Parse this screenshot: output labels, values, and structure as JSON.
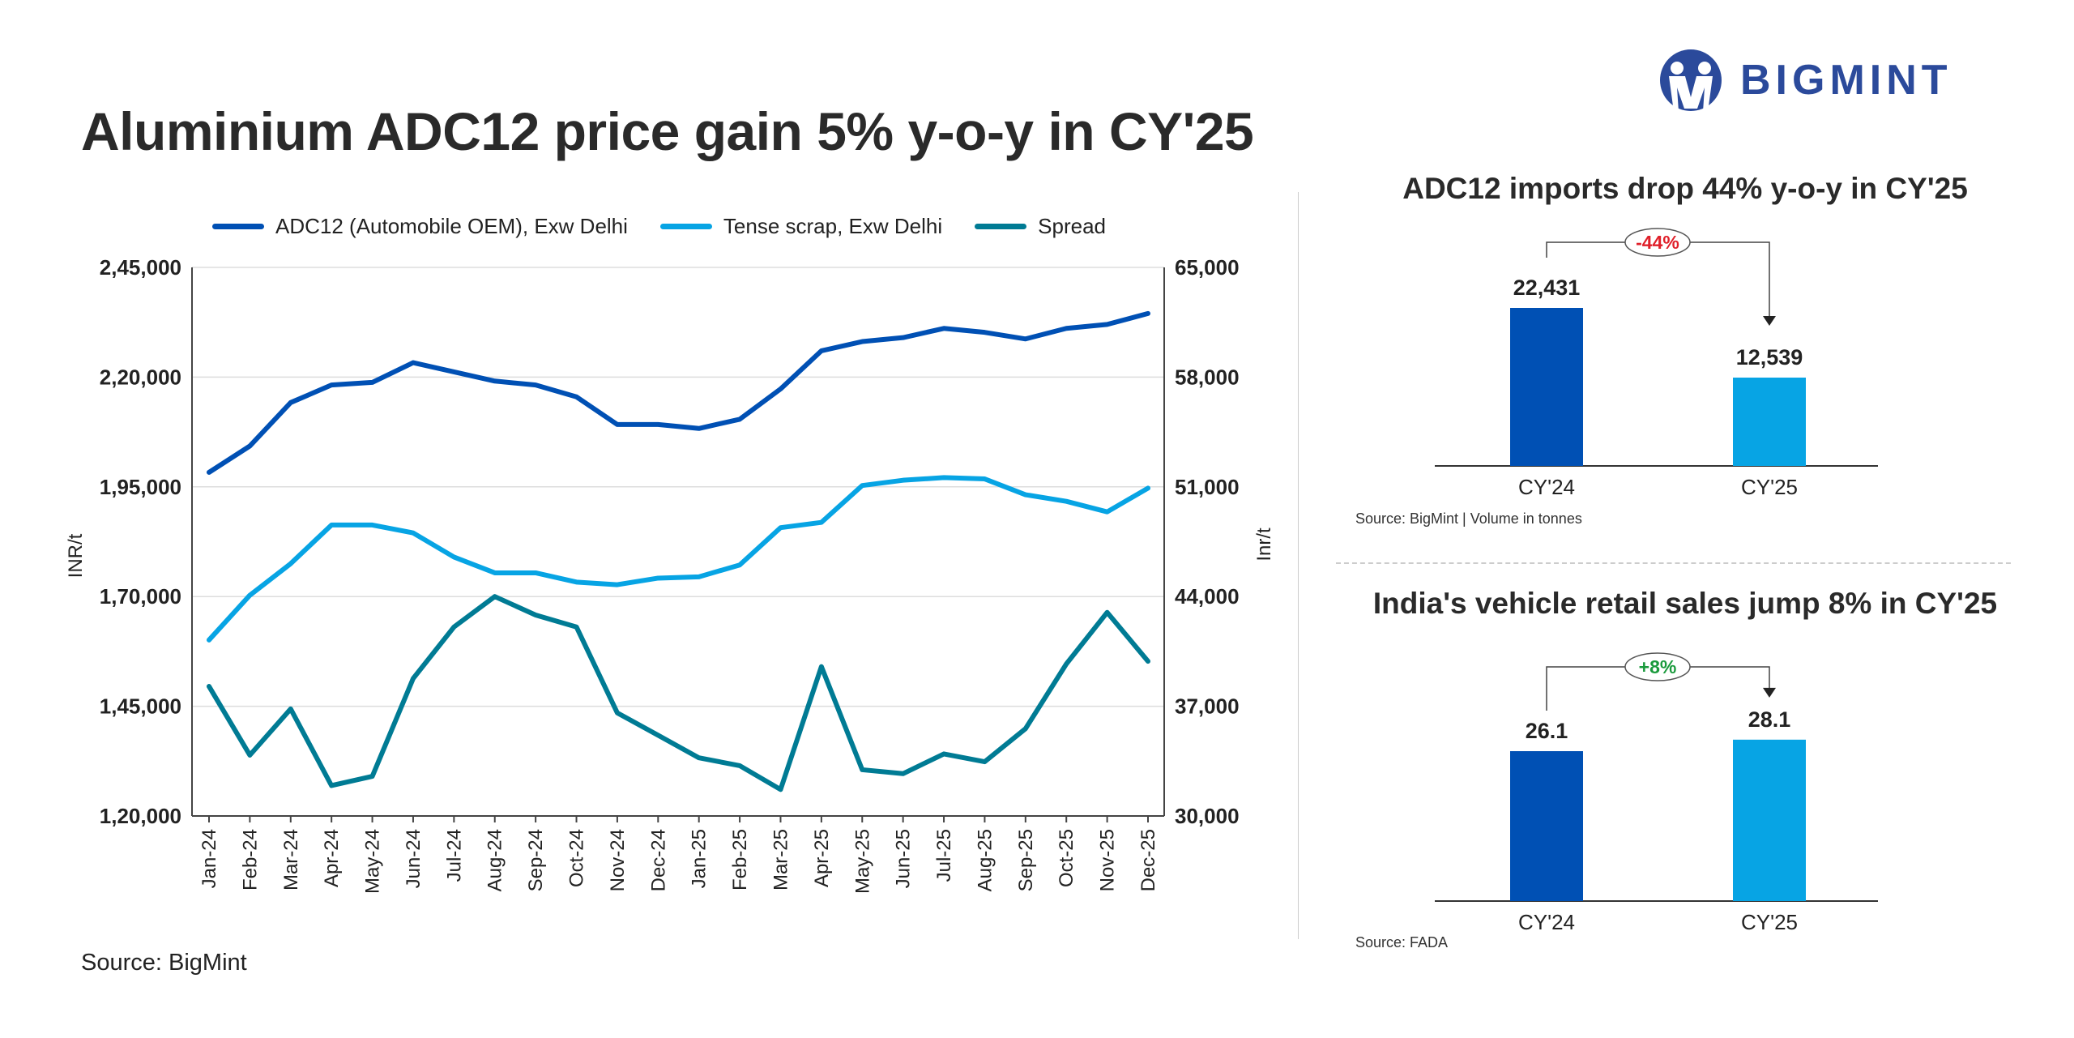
{
  "title": "Aluminium ADC12 price gain 5% y-o-y in CY'25",
  "logo": {
    "text": "BIGMINT",
    "color": "#2b4a9b"
  },
  "source_main": "Source: BigMint",
  "chart_data": [
    {
      "type": "line",
      "title": "Aluminium ADC12 price gain 5% y-o-y in CY'25",
      "ylabel": "INR/t",
      "y2label": "Inr/t",
      "ylim": [
        120000,
        245000
      ],
      "y2lim": [
        30000,
        65000
      ],
      "yticks": [
        "1,20,000",
        "1,45,000",
        "1,70,000",
        "1,95,000",
        "2,20,000",
        "2,45,000"
      ],
      "y2ticks": [
        "30,000",
        "37,000",
        "44,000",
        "51,000",
        "58,000",
        "65,000"
      ],
      "grid": true,
      "legend": "top",
      "categories": [
        "Jan-24",
        "Feb-24",
        "Mar-24",
        "Apr-24",
        "May-24",
        "Jun-24",
        "Jul-24",
        "Aug-24",
        "Sep-24",
        "Oct-24",
        "Nov-24",
        "Dec-24",
        "Jan-25",
        "Feb-25",
        "Mar-25",
        "Apr-25",
        "May-25",
        "Jun-25",
        "Jul-25",
        "Aug-25",
        "Sep-25",
        "Oct-25",
        "Nov-25",
        "Dec-25"
      ],
      "series": [
        {
          "name": "ADC12 (Automobile OEM), Exw Delhi",
          "axis": "left",
          "color": "#0050b4",
          "values": [
            198300,
            204300,
            214200,
            218200,
            218800,
            223300,
            221200,
            219100,
            218200,
            215500,
            209200,
            209200,
            208300,
            210400,
            217300,
            226000,
            228100,
            229000,
            231100,
            230200,
            228700,
            231100,
            232000,
            234500
          ]
        },
        {
          "name": "Tense scrap, Exw Delhi",
          "axis": "left",
          "color": "#07a4e4",
          "values": [
            160100,
            170300,
            177500,
            186300,
            186300,
            184500,
            179000,
            175400,
            175400,
            173300,
            172700,
            174200,
            174500,
            177200,
            185700,
            186900,
            195300,
            196500,
            197100,
            196800,
            193200,
            191700,
            189300,
            194700
          ]
        },
        {
          "name": "Spread",
          "axis": "right",
          "color": "#007b94",
          "values": [
            38270,
            33880,
            36830,
            31940,
            32530,
            38770,
            42060,
            44000,
            42820,
            42060,
            36580,
            35150,
            33710,
            33210,
            31690,
            39530,
            32950,
            32700,
            33960,
            33460,
            35570,
            39700,
            42990,
            39870
          ]
        }
      ]
    },
    {
      "type": "bar",
      "title": "ADC12 imports drop 44% y-o-y in CY'25",
      "categories": [
        "CY'24",
        "CY'25"
      ],
      "values": [
        22431,
        12539
      ],
      "labels": [
        "22,431",
        "12,539"
      ],
      "colors": [
        "#0050b4",
        "#07a4e4"
      ],
      "change": "-44%",
      "change_color": "#e0202a",
      "source": "Source: BigMint | Volume in tonnes"
    },
    {
      "type": "bar",
      "title": "India's vehicle retail sales jump 8% in CY'25",
      "categories": [
        "CY'24",
        "CY'25"
      ],
      "values": [
        26.1,
        28.1
      ],
      "labels": [
        "26.1",
        "28.1"
      ],
      "colors": [
        "#0050b4",
        "#07a4e4"
      ],
      "change": "+8%",
      "change_color": "#1a9a3c",
      "source": "Source: FADA"
    }
  ]
}
